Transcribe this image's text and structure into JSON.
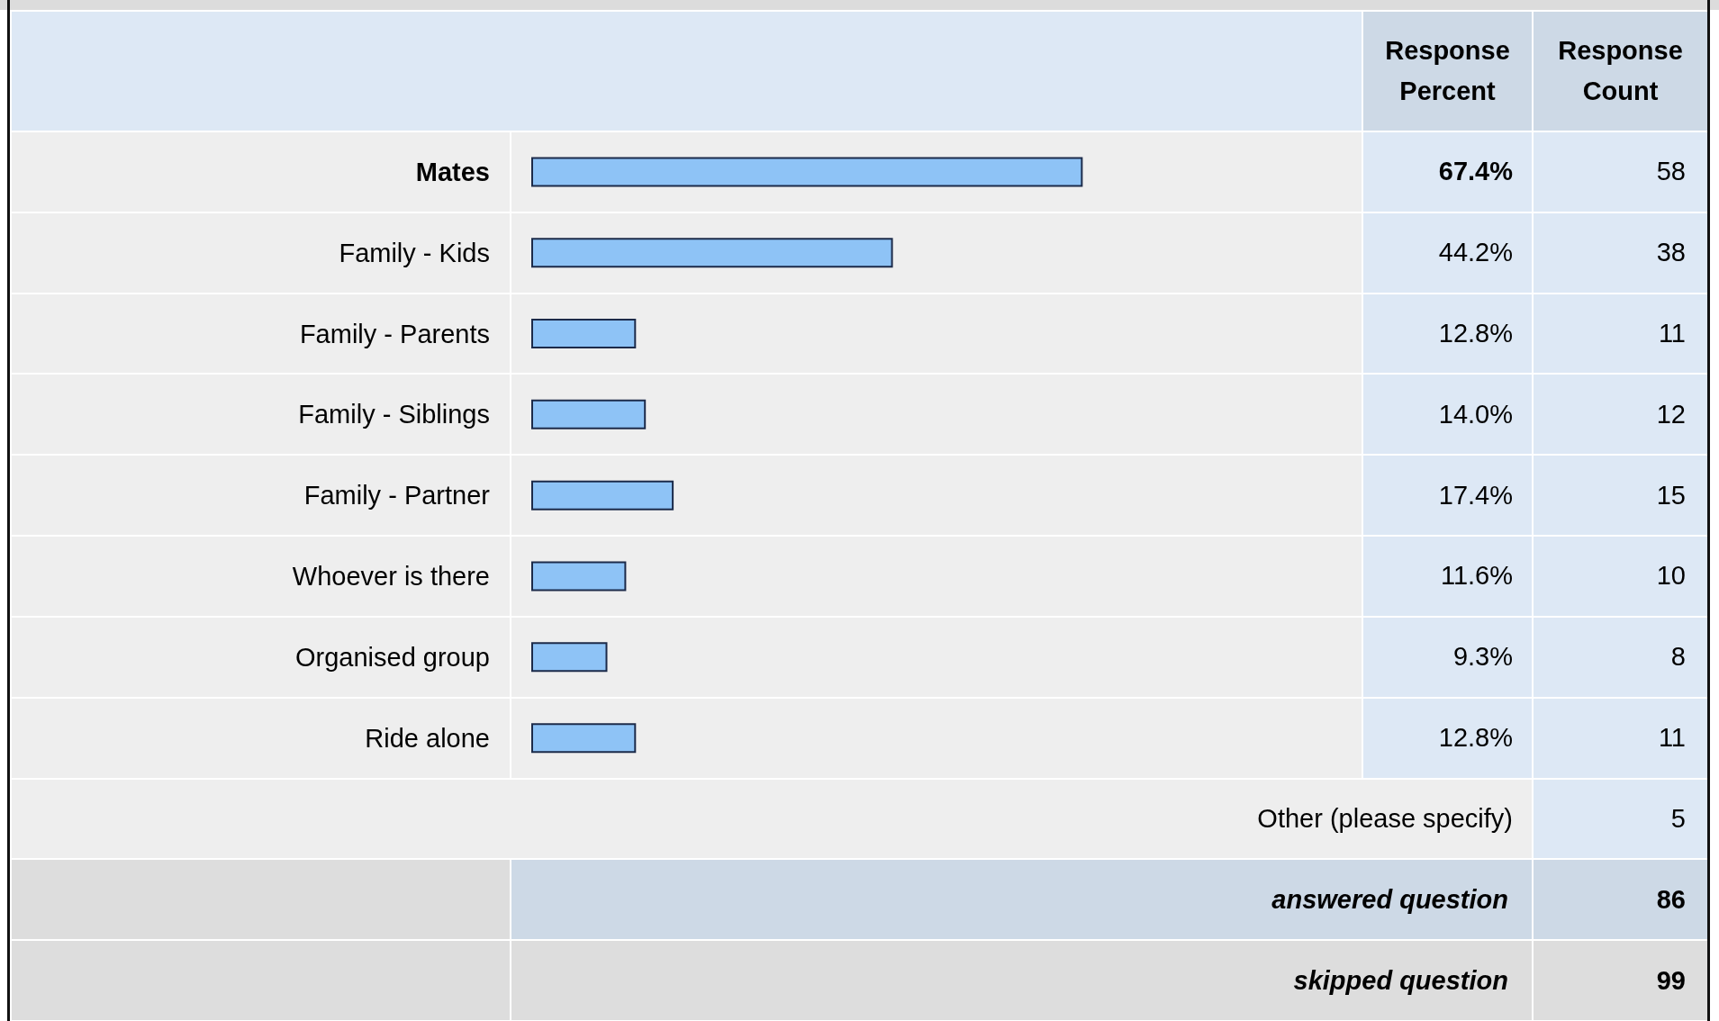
{
  "chart_data": {
    "type": "bar",
    "orientation": "horizontal",
    "categories": [
      "Mates",
      "Family - Kids",
      "Family - Parents",
      "Family - Siblings",
      "Family - Partner",
      "Whoever is there",
      "Organised group",
      "Ride alone"
    ],
    "values": [
      67.4,
      44.2,
      12.8,
      14.0,
      17.4,
      11.6,
      9.3,
      12.8
    ],
    "value_labels": [
      "67.4%",
      "44.2%",
      "12.8%",
      "14.0%",
      "17.4%",
      "11.6%",
      "9.3%",
      "12.8%"
    ],
    "color": "#8ec3f6",
    "tick_labels": "y",
    "annotations": [
      "Response Percent",
      "Response Count",
      "58",
      "38",
      "11",
      "12",
      "15",
      "10",
      "8",
      "11",
      "Other (please specify)",
      "5",
      "answered question",
      "86",
      "skipped question",
      "99"
    ]
  }
}
